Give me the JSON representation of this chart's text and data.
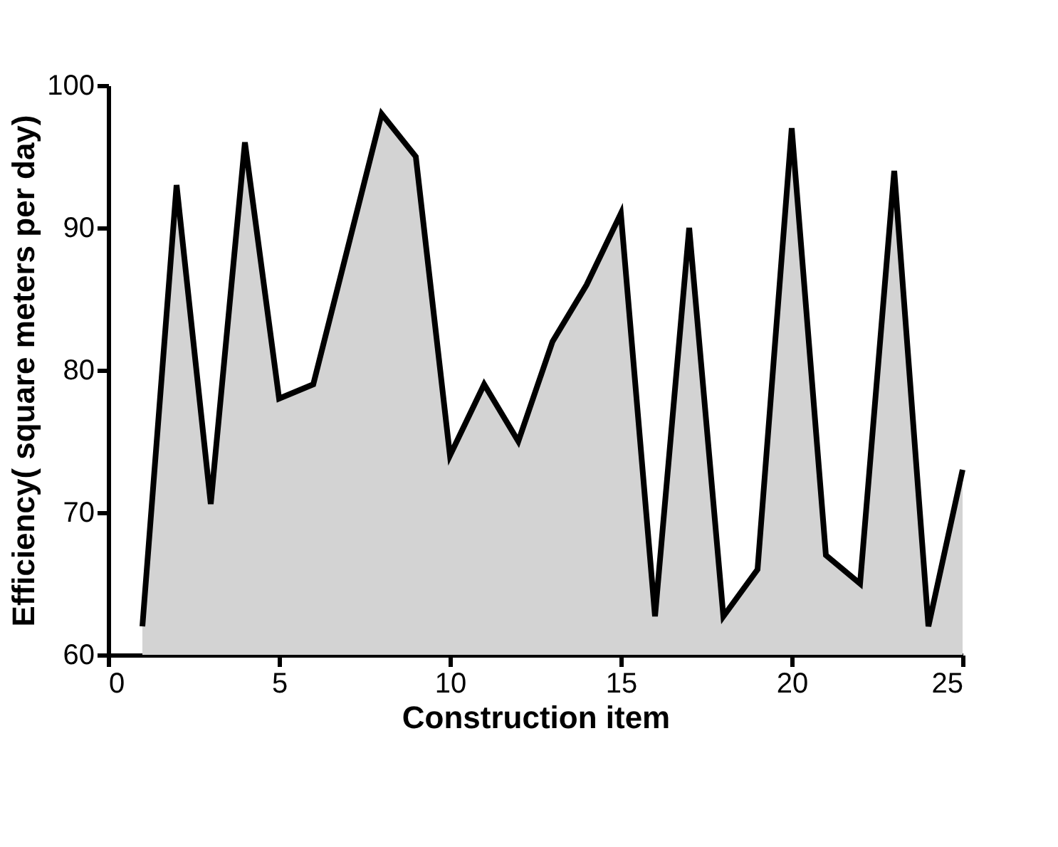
{
  "chart_data": {
    "type": "area",
    "xlabel": "Construction item",
    "ylabel": "Efficiency( square meters per day)",
    "x": [
      1,
      2,
      3,
      4,
      5,
      6,
      7,
      8,
      9,
      10,
      11,
      12,
      13,
      14,
      15,
      16,
      17,
      18,
      19,
      20,
      21,
      22,
      23,
      24,
      25
    ],
    "series": [
      {
        "color": "#d3d3d3",
        "values": [
          62,
          93,
          70.6,
          96,
          78,
          79,
          88.5,
          98,
          95,
          74,
          79,
          75,
          82,
          86,
          91,
          62.7,
          90,
          62.7,
          66,
          97,
          67,
          65,
          94,
          62,
          73
        ]
      }
    ],
    "xlim": [
      0,
      25
    ],
    "xticks": [
      0,
      5,
      10,
      15,
      20,
      25
    ],
    "ylim": [
      60,
      100
    ],
    "yticks": [
      60,
      70,
      80,
      90,
      100
    ],
    "grid": false,
    "marker": "none",
    "line_style": "solid"
  }
}
